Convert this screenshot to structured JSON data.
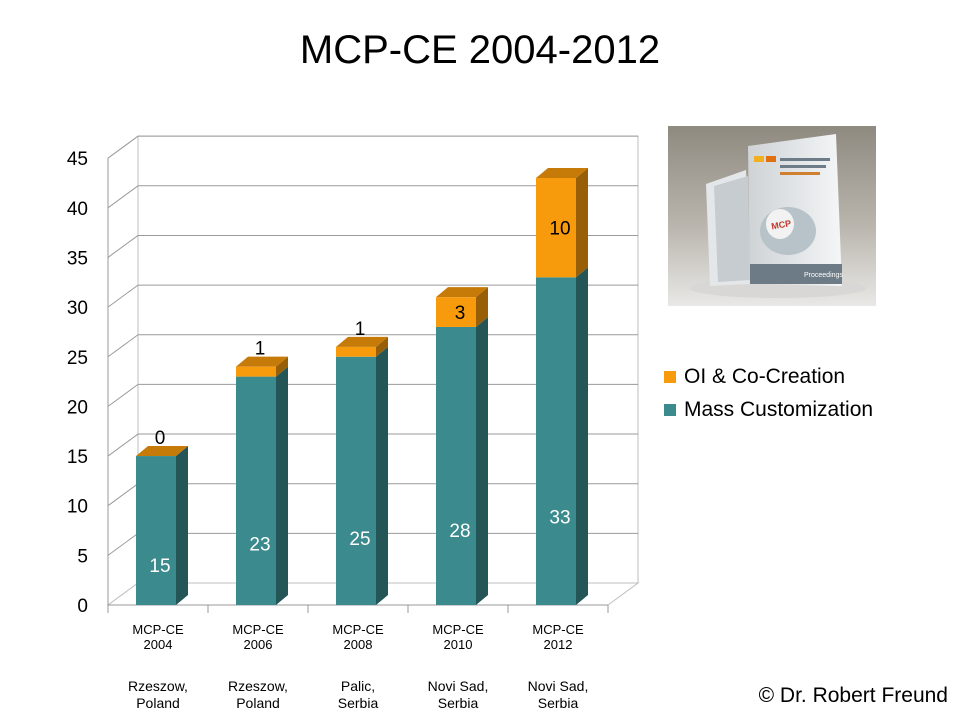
{
  "title": "MCP-CE 2004-2012",
  "copyright": "© Dr. Robert Freund",
  "photo": {
    "cover_label": "Proceedings",
    "logo_text": "MCP"
  },
  "chart_data": {
    "type": "bar",
    "stacked": true,
    "title": "MCP-CE 2004-2012",
    "categories": [
      "MCP-CE 2004",
      "MCP-CE 2006",
      "MCP-CE 2008",
      "MCP-CE 2010",
      "MCP-CE 2012"
    ],
    "category_lines": [
      [
        "MCP-CE",
        "2004"
      ],
      [
        "MCP-CE",
        "2006"
      ],
      [
        "MCP-CE",
        "2008"
      ],
      [
        "MCP-CE",
        "2010"
      ],
      [
        "MCP-CE",
        "2012"
      ]
    ],
    "locations": [
      [
        "Rzeszow,",
        "Poland"
      ],
      [
        "Rzeszow,",
        "Poland"
      ],
      [
        "Palic,",
        "Serbia"
      ],
      [
        "Novi Sad,",
        "Serbia"
      ],
      [
        "Novi Sad,",
        "Serbia"
      ]
    ],
    "series": [
      {
        "name": "Mass Customization",
        "values": [
          15,
          23,
          25,
          28,
          33
        ],
        "color": "#3b8a8d"
      },
      {
        "name": "OI & Co-Creation",
        "values": [
          0,
          1,
          1,
          3,
          10
        ],
        "color": "#f79a0b"
      }
    ],
    "legend_order": [
      "OI & Co-Creation",
      "Mass Customization"
    ],
    "ylim": [
      0,
      45
    ],
    "yticks": [
      0,
      5,
      10,
      15,
      20,
      25,
      30,
      35,
      40,
      45
    ],
    "grid": true,
    "legend_position": "right",
    "three_d": true
  }
}
